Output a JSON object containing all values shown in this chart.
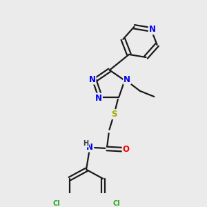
{
  "bg_color": "#ebebeb",
  "bond_color": "#1a1a1a",
  "bond_width": 1.6,
  "atom_colors": {
    "N": "#0000ee",
    "O": "#ee0000",
    "S": "#aaaa00",
    "Cl": "#22aa22",
    "C": "#1a1a1a",
    "H": "#444444"
  },
  "font_size_atom": 8.5,
  "font_size_small": 7.0,
  "xlim": [
    0,
    10
  ],
  "ylim": [
    0,
    10
  ]
}
